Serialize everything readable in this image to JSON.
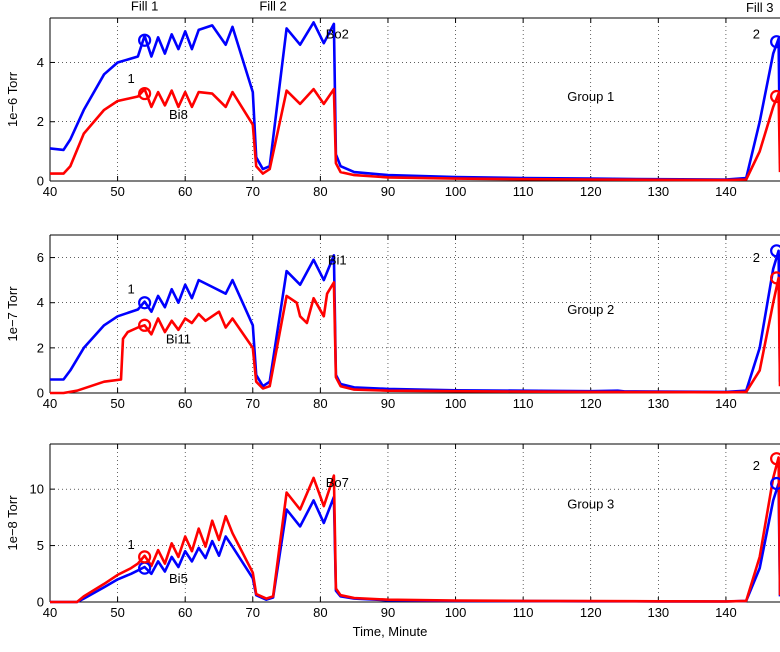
{
  "chart_data": [
    {
      "type": "line",
      "title": "",
      "xlabel": "",
      "ylabel": "1e−6 Torr",
      "xlim": [
        40,
        148
      ],
      "ylim": [
        0,
        5.5
      ],
      "x_ticks": [
        40,
        50,
        60,
        70,
        80,
        90,
        100,
        110,
        120,
        130,
        140
      ],
      "y_ticks": [
        0,
        2,
        4
      ],
      "grid": true,
      "annotations": [
        {
          "text": "Fill 1",
          "x": 54,
          "y": 5.75
        },
        {
          "text": "Fill 2",
          "x": 73,
          "y": 5.75
        },
        {
          "text": "Fill 3",
          "x": 145,
          "y": 5.7
        },
        {
          "text": "Bo2",
          "x": 82.5,
          "y": 4.8
        },
        {
          "text": "Bi8",
          "x": 59,
          "y": 2.1
        },
        {
          "text": "1",
          "x": 52,
          "y": 3.3
        },
        {
          "text": "2",
          "x": 144.5,
          "y": 4.8
        },
        {
          "text": "Group 1",
          "x": 120,
          "y": 2.7
        }
      ],
      "markers": [
        {
          "x": 54,
          "y": 4.75,
          "color": "#0000ff"
        },
        {
          "x": 54,
          "y": 2.95,
          "color": "#ff0000"
        },
        {
          "x": 147.5,
          "y": 4.7,
          "color": "#0000ff"
        },
        {
          "x": 147.5,
          "y": 2.85,
          "color": "#ff0000"
        }
      ],
      "series": [
        {
          "color": "#0000ff",
          "x": [
            40,
            42,
            43,
            45,
            48,
            50,
            53,
            54,
            55,
            56,
            57,
            58,
            59,
            60,
            61,
            62,
            64,
            66,
            67,
            70,
            70.5,
            71.5,
            72.5,
            75,
            77,
            79,
            80.5,
            82,
            82.3,
            83,
            85,
            90,
            100,
            110,
            120,
            130,
            140,
            143,
            145,
            147,
            147.8,
            148
          ],
          "y": [
            1.1,
            1.05,
            1.4,
            2.4,
            3.6,
            4.0,
            4.2,
            4.9,
            4.2,
            4.85,
            4.3,
            4.95,
            4.45,
            5.05,
            4.45,
            5.1,
            5.25,
            4.6,
            5.2,
            3.0,
            0.8,
            0.4,
            0.5,
            5.15,
            4.6,
            5.35,
            4.65,
            5.3,
            0.9,
            0.5,
            0.3,
            0.2,
            0.13,
            0.1,
            0.08,
            0.06,
            0.05,
            0.1,
            2.0,
            4.3,
            4.8,
            0.6
          ]
        },
        {
          "color": "#ff0000",
          "x": [
            40,
            42,
            43,
            45,
            48,
            50,
            53,
            54,
            55,
            56,
            57,
            58,
            59,
            60,
            61,
            62,
            64,
            66,
            67,
            70,
            70.5,
            71.5,
            72.5,
            75,
            77,
            79,
            80.5,
            82,
            82.3,
            83,
            85,
            90,
            100,
            110,
            120,
            130,
            140,
            143,
            145,
            147,
            147.8,
            148
          ],
          "y": [
            0.25,
            0.25,
            0.5,
            1.6,
            2.4,
            2.7,
            2.85,
            3.1,
            2.5,
            3.0,
            2.55,
            3.05,
            2.5,
            3.0,
            2.5,
            3.0,
            2.95,
            2.5,
            3.0,
            1.9,
            0.5,
            0.25,
            0.4,
            3.05,
            2.6,
            3.1,
            2.6,
            3.1,
            0.6,
            0.3,
            0.2,
            0.12,
            0.08,
            0.06,
            0.05,
            0.04,
            0.03,
            0.05,
            1.0,
            2.5,
            2.95,
            0.3
          ]
        }
      ]
    },
    {
      "type": "line",
      "title": "",
      "xlabel": "",
      "ylabel": "1e−7 Torr",
      "xlim": [
        40,
        148
      ],
      "ylim": [
        0,
        7
      ],
      "x_ticks": [
        40,
        50,
        60,
        70,
        80,
        90,
        100,
        110,
        120,
        130,
        140
      ],
      "y_ticks": [
        0,
        2,
        4,
        6
      ],
      "grid": true,
      "annotations": [
        {
          "text": "Bi1",
          "x": 82.5,
          "y": 5.7
        },
        {
          "text": "Bi11",
          "x": 59,
          "y": 2.2
        },
        {
          "text": "1",
          "x": 52,
          "y": 4.4
        },
        {
          "text": "2",
          "x": 144.5,
          "y": 5.8
        },
        {
          "text": "Group 2",
          "x": 120,
          "y": 3.5
        }
      ],
      "markers": [
        {
          "x": 54,
          "y": 4.0,
          "color": "#0000ff"
        },
        {
          "x": 54,
          "y": 3.0,
          "color": "#ff0000"
        },
        {
          "x": 147.5,
          "y": 6.3,
          "color": "#0000ff"
        },
        {
          "x": 147.5,
          "y": 5.1,
          "color": "#ff0000"
        }
      ],
      "series": [
        {
          "color": "#0000ff",
          "x": [
            40,
            42,
            43,
            45,
            48,
            50,
            53,
            54,
            55,
            56,
            57,
            58,
            59,
            60,
            61,
            62,
            64,
            66,
            67,
            70,
            70.5,
            71.5,
            72.5,
            75,
            77,
            79,
            80.5,
            82,
            82.3,
            83,
            85,
            90,
            100,
            110,
            120,
            124,
            125,
            130,
            140,
            143,
            145,
            147,
            147.8,
            148
          ],
          "y": [
            0.6,
            0.6,
            1.0,
            2.0,
            3.0,
            3.4,
            3.7,
            4.05,
            3.6,
            4.3,
            3.8,
            4.6,
            4.0,
            4.8,
            4.2,
            5.0,
            4.7,
            4.4,
            5.0,
            3.0,
            0.8,
            0.3,
            0.5,
            5.4,
            4.8,
            5.9,
            5.0,
            6.1,
            0.8,
            0.4,
            0.25,
            0.18,
            0.12,
            0.1,
            0.08,
            0.1,
            0.07,
            0.06,
            0.05,
            0.1,
            2.0,
            5.5,
            6.3,
            0.5
          ]
        },
        {
          "color": "#ff0000",
          "x": [
            40,
            42,
            44,
            46,
            48,
            50.5,
            50.8,
            51.5,
            53,
            54,
            55,
            56,
            57,
            58,
            59,
            60,
            61,
            62,
            63,
            65,
            66,
            67,
            70,
            70.5,
            71.5,
            72.5,
            75,
            76.5,
            77,
            78,
            79,
            80.5,
            81,
            82,
            82.3,
            83,
            85,
            90,
            100,
            110,
            120,
            130,
            140,
            143,
            145,
            147,
            147.8,
            148
          ],
          "y": [
            0.0,
            0.0,
            0.1,
            0.3,
            0.5,
            0.6,
            2.4,
            2.7,
            2.9,
            3.0,
            2.6,
            3.3,
            2.7,
            3.2,
            2.8,
            3.3,
            3.1,
            3.5,
            3.2,
            3.6,
            2.9,
            3.3,
            2.0,
            0.5,
            0.2,
            0.3,
            4.3,
            4.0,
            3.4,
            3.1,
            4.2,
            3.4,
            4.4,
            4.9,
            0.7,
            0.3,
            0.15,
            0.1,
            0.08,
            0.06,
            0.05,
            0.04,
            0.03,
            0.05,
            1.0,
            4.0,
            5.1,
            0.3
          ]
        }
      ]
    },
    {
      "type": "line",
      "title": "",
      "xlabel": "Time, Minute",
      "ylabel": "1e−8 Torr",
      "xlim": [
        40,
        148
      ],
      "ylim": [
        0,
        14
      ],
      "x_ticks": [
        40,
        50,
        60,
        70,
        80,
        90,
        100,
        110,
        120,
        130,
        140
      ],
      "y_ticks": [
        0,
        5,
        10
      ],
      "grid": true,
      "annotations": [
        {
          "text": "Bo7",
          "x": 82.5,
          "y": 10.2
        },
        {
          "text": "Bi5",
          "x": 59,
          "y": 1.7
        },
        {
          "text": "1",
          "x": 52,
          "y": 4.7
        },
        {
          "text": "2",
          "x": 144.5,
          "y": 11.7
        },
        {
          "text": "Group 3",
          "x": 120,
          "y": 8.3
        }
      ],
      "markers": [
        {
          "x": 54,
          "y": 3.0,
          "color": "#0000ff"
        },
        {
          "x": 54,
          "y": 4.0,
          "color": "#ff0000"
        },
        {
          "x": 147.5,
          "y": 10.5,
          "color": "#0000ff"
        },
        {
          "x": 147.5,
          "y": 12.7,
          "color": "#ff0000"
        }
      ],
      "series": [
        {
          "color": "#0000ff",
          "x": [
            40,
            44,
            45,
            48,
            50,
            52,
            53,
            54,
            55,
            56,
            57,
            58,
            59,
            60,
            61,
            62,
            63,
            64,
            65,
            66,
            67,
            70,
            70.5,
            72,
            73,
            75,
            77,
            79,
            80.5,
            82,
            82.3,
            83,
            85,
            90,
            100,
            110,
            120,
            130,
            140,
            143,
            145,
            147,
            147.8,
            148
          ],
          "y": [
            0.0,
            0.0,
            0.3,
            1.3,
            2.0,
            2.5,
            2.8,
            3.1,
            2.5,
            3.6,
            2.7,
            4.0,
            3.1,
            4.5,
            3.6,
            4.8,
            3.9,
            5.4,
            4.1,
            5.8,
            4.9,
            2.1,
            0.6,
            0.2,
            0.4,
            8.2,
            6.7,
            9.0,
            7.0,
            9.3,
            1.0,
            0.5,
            0.3,
            0.15,
            0.1,
            0.08,
            0.06,
            0.05,
            0.04,
            0.1,
            3.0,
            9.0,
            10.5,
            0.5
          ]
        },
        {
          "color": "#ff0000",
          "x": [
            40,
            44,
            45,
            48,
            50,
            52,
            53,
            54,
            55,
            56,
            57,
            58,
            59,
            60,
            61,
            62,
            63,
            64,
            65,
            66,
            67,
            70,
            70.5,
            72,
            73,
            75,
            77,
            79,
            80.5,
            82,
            82.3,
            83,
            85,
            90,
            100,
            110,
            120,
            130,
            140,
            143,
            145,
            147,
            147.8,
            148
          ],
          "y": [
            0.0,
            0.0,
            0.5,
            1.6,
            2.4,
            3.0,
            3.4,
            4.1,
            3.2,
            4.6,
            3.4,
            5.2,
            4.0,
            5.8,
            4.5,
            6.5,
            4.9,
            7.2,
            5.5,
            7.6,
            6.1,
            2.6,
            0.7,
            0.3,
            0.5,
            9.7,
            8.2,
            11.0,
            8.5,
            11.2,
            1.2,
            0.6,
            0.35,
            0.2,
            0.12,
            0.1,
            0.08,
            0.06,
            0.05,
            0.1,
            4.0,
            11.0,
            12.8,
            0.6
          ]
        }
      ]
    }
  ]
}
